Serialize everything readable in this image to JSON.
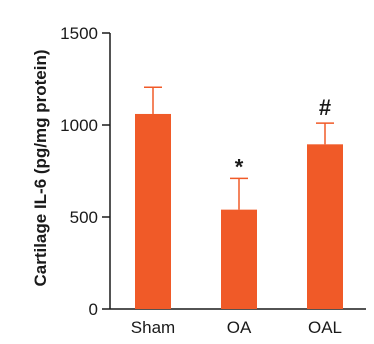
{
  "chart_data": {
    "type": "bar",
    "title": "",
    "xlabel": "",
    "ylabel": "Cartilage IL-6 (pg/mg protein)",
    "categories": [
      "Sham",
      "OA",
      "OAL"
    ],
    "values": [
      1060,
      540,
      895
    ],
    "errors": [
      145,
      170,
      115
    ],
    "annotations": [
      "",
      "*",
      "#"
    ],
    "ylim": [
      0,
      1500
    ],
    "yticks": [
      0,
      500,
      1000,
      1500
    ],
    "grid": false,
    "legend": "none",
    "colors": {
      "bar": "#f05a28",
      "axis": "#1a1a1a",
      "error": "#f05a28"
    }
  }
}
